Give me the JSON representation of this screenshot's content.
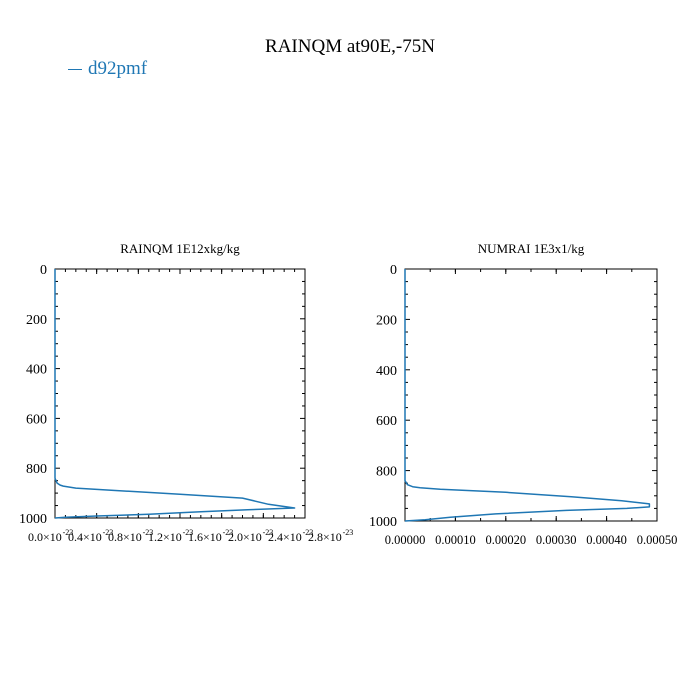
{
  "title": "RAINQM at90E,-75N",
  "legend": {
    "label": "d92pmf",
    "color": "#1f77b4"
  },
  "chart_data": [
    {
      "type": "line",
      "title": "RAINQM  1E12xkg/kg",
      "series": [
        {
          "name": "d92pmf",
          "color": "#1f77b4",
          "x": [
            0,
            0,
            0.0,
            0.02,
            0.05,
            0.08,
            0.2,
            0.6,
            1.2,
            1.8,
            2.05,
            2.3,
            1.85,
            1.4,
            0.9,
            0.4,
            0.1,
            0.0
          ],
          "y": [
            0,
            740,
            840,
            860,
            868,
            872,
            880,
            890,
            905,
            920,
            945,
            960,
            967,
            975,
            985,
            992,
            997,
            1000
          ]
        }
      ],
      "xlim": [
        0,
        2.4
      ],
      "ylim": [
        1000,
        0
      ],
      "xticks": [
        "0.0×10",
        "0.4×10",
        "0.8×10",
        "1.2×10",
        "1.6×10",
        "2.0×10",
        "2.4×10",
        "2.8×10"
      ],
      "xticks_exp": "-23",
      "yticks": [
        "0",
        "200",
        "400",
        "600",
        "800",
        "1000"
      ],
      "yticks_values": [
        0,
        200,
        400,
        600,
        800,
        1000
      ]
    },
    {
      "type": "line",
      "title": "NUMRAI  1E3x1/kg",
      "series": [
        {
          "name": "d92pmf",
          "color": "#1f77b4",
          "x": [
            0,
            0,
            0.0,
            5e-06,
            1.5e-05,
            3e-05,
            7e-05,
            0.0002,
            0.00033,
            0.00043,
            0.000485,
            0.000485,
            0.00044,
            0.00032,
            0.00018,
            9e-05,
            4e-05,
            0.0
          ],
          "y": [
            0,
            740,
            840,
            856,
            864,
            868,
            874,
            886,
            904,
            920,
            932,
            944,
            950,
            958,
            972,
            985,
            995,
            1000
          ]
        }
      ],
      "xlim": [
        0,
        0.0005
      ],
      "ylim": [
        1000,
        0
      ],
      "xticks": [
        "0.00000",
        "0.00010",
        "0.00020",
        "0.00030",
        "0.00040",
        "0.00050"
      ],
      "xticks_values": [
        0,
        0.0001,
        0.0002,
        0.0003,
        0.0004,
        0.0005
      ],
      "yticks": [
        "0",
        "200",
        "400",
        "600",
        "800",
        "1000"
      ],
      "yticks_values": [
        0,
        200,
        400,
        600,
        800,
        1000
      ]
    }
  ]
}
